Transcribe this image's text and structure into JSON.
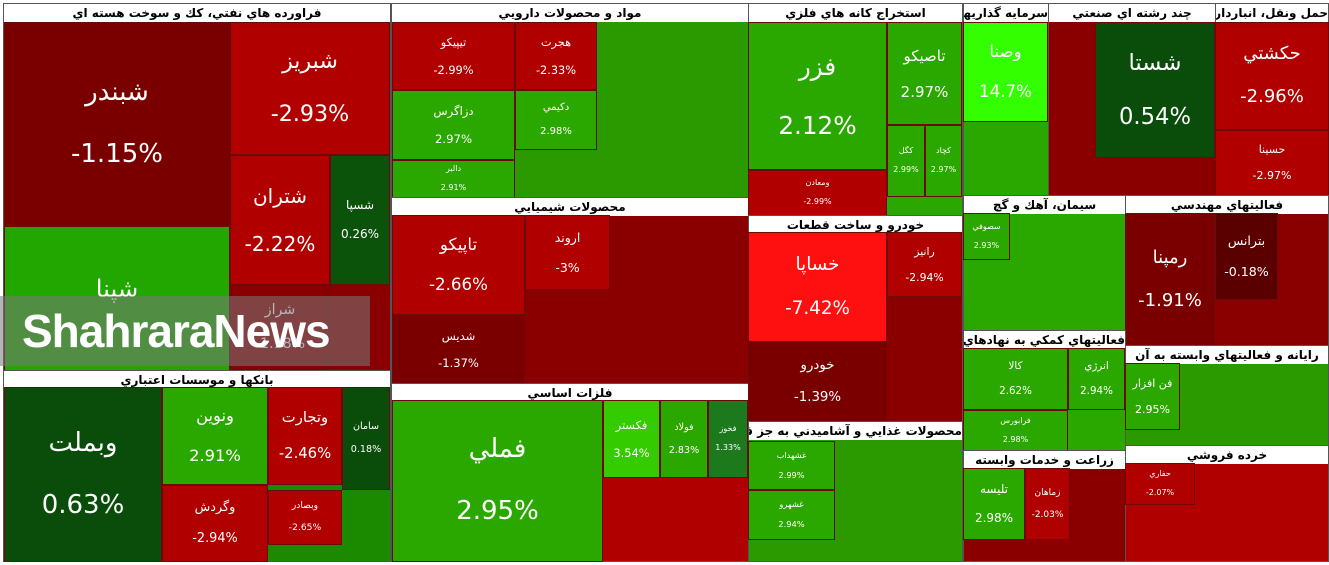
{
  "sectors": [
    {
      "title": "فراورده هاي نفتي، كك و سوخت هسته اي",
      "tiles": [
        {
          "name": "شبندر",
          "change": "-1.15%",
          "color": "#7a0000"
        },
        {
          "name": "شپنا",
          "change": "",
          "color": "#22a600"
        },
        {
          "name": "شبريز",
          "change": "-2.93%",
          "color": "#b00000"
        },
        {
          "name": "شتران",
          "change": "-2.22%",
          "color": "#b00000"
        },
        {
          "name": "شسپا",
          "change": "0.26%",
          "color": "#0b520b"
        },
        {
          "name": "شراز",
          "change": "-1.18%",
          "color": "#8a0000"
        }
      ]
    },
    {
      "title": "بانكها و موسسات اعتباري",
      "tiles": [
        {
          "name": "وبملت",
          "change": "0.63%",
          "color": "#0a4d0a"
        },
        {
          "name": "ونوين",
          "change": "2.91%",
          "color": "#2aa800"
        },
        {
          "name": "وتجارت",
          "change": "-2.46%",
          "color": "#b00000"
        },
        {
          "name": "سامان",
          "change": "0.18%",
          "color": "#0a4d0a"
        },
        {
          "name": "وگردش",
          "change": "-2.94%",
          "color": "#b00000"
        },
        {
          "name": "وبصادر",
          "change": "-2.65%",
          "color": "#b00000"
        }
      ]
    },
    {
      "title": "مواد و محصولات دارويي",
      "tiles": [
        {
          "name": "تيپيكو",
          "change": "-2.99%",
          "color": "#b00000"
        },
        {
          "name": "هجرت",
          "change": "-2.33%",
          "color": "#b00000"
        },
        {
          "name": "دزاگرس",
          "change": "2.97%",
          "color": "#2aa800"
        },
        {
          "name": "دكيمي",
          "change": "2.98%",
          "color": "#2aa800"
        },
        {
          "name": "دالبر",
          "change": "2.91%",
          "color": "#2aa800"
        }
      ]
    },
    {
      "title": "محصولات شيميايي",
      "tiles": [
        {
          "name": "تاپيكو",
          "change": "-2.66%",
          "color": "#b00000"
        },
        {
          "name": "شديس",
          "change": "-1.37%",
          "color": "#7a0000"
        },
        {
          "name": "اروند",
          "change": "-3%",
          "color": "#b00000"
        }
      ]
    },
    {
      "title": "فلزات اساسي",
      "tiles": [
        {
          "name": "فملي",
          "change": "2.95%",
          "color": "#2aa800"
        },
        {
          "name": "فكستر",
          "change": "3.54%",
          "color": "#34cc00"
        },
        {
          "name": "فولاد",
          "change": "2.83%",
          "color": "#2aa800"
        },
        {
          "name": "فخوز",
          "change": "1.33%",
          "color": "#1c7a1c"
        }
      ]
    },
    {
      "title": "استخراج كانه هاي فلزي",
      "tiles": [
        {
          "name": "فزر",
          "change": "2.12%",
          "color": "#2aa800"
        },
        {
          "name": "تاصيكو",
          "change": "2.97%",
          "color": "#2aa800"
        },
        {
          "name": "كگل",
          "change": "2.99%",
          "color": "#2aa800"
        },
        {
          "name": "كچاد",
          "change": "2.97%",
          "color": "#2aa800"
        },
        {
          "name": "ومعادن",
          "change": "-2.99%",
          "color": "#b00000"
        }
      ]
    },
    {
      "title": "خودرو و ساخت قطعات",
      "tiles": [
        {
          "name": "خساپا",
          "change": "-7.42%",
          "color": "#ff1010"
        },
        {
          "name": "خودرو",
          "change": "-1.39%",
          "color": "#7a0000"
        },
        {
          "name": "رانيز",
          "change": "-2.94%",
          "color": "#b00000"
        }
      ]
    },
    {
      "title": "محصولات غذايي و آشاميدني به جز قند و شكر",
      "tiles": [
        {
          "name": "غشهداب",
          "change": "2.99%",
          "color": "#2aa800"
        },
        {
          "name": "غشهرو",
          "change": "2.94%",
          "color": "#2aa800"
        }
      ]
    },
    {
      "title": "سرمايه گذاريها",
      "tiles": [
        {
          "name": "وصنا",
          "change": "14.7%",
          "color": "#33ff00"
        }
      ]
    },
    {
      "title": "چند رشته اي صنعتي",
      "tiles": [
        {
          "name": "شستا",
          "change": "0.54%",
          "color": "#0a4d0a"
        }
      ]
    },
    {
      "title": "حمل ونقل، انبارداري و ارتباطات",
      "tiles": [
        {
          "name": "حكشتي",
          "change": "-2.96%",
          "color": "#b00000"
        },
        {
          "name": "حسينا",
          "change": "-2.97%",
          "color": "#b00000"
        }
      ]
    },
    {
      "title": "سيمان، آهك و گچ",
      "tiles": [
        {
          "name": "سصوفي",
          "change": "2.93%",
          "color": "#2aa800"
        }
      ]
    },
    {
      "title": "فعاليتهاي مهندسي",
      "tiles": [
        {
          "name": "رمپنا",
          "change": "-1.91%",
          "color": "#7a0000"
        },
        {
          "name": "بترانس",
          "change": "-0.18%",
          "color": "#5a0000"
        }
      ]
    },
    {
      "title": "فعاليتهاي كمكي به نهادهاي مالي واسط",
      "tiles": [
        {
          "name": "كالا",
          "change": "2.62%",
          "color": "#2aa800"
        },
        {
          "name": "انرژي",
          "change": "2.94%",
          "color": "#2aa800"
        },
        {
          "name": "فرابورس",
          "change": "2.98%",
          "color": "#2aa800"
        }
      ]
    },
    {
      "title": "زراعت و خدمات وابسته",
      "tiles": [
        {
          "name": "تليسه",
          "change": "2.98%",
          "color": "#2aa800"
        },
        {
          "name": "زماهان",
          "change": "-2.03%",
          "color": "#b00000"
        }
      ]
    },
    {
      "title": "رايانه و فعاليتهاي وابسته به آن",
      "tiles": [
        {
          "name": "فن افزار",
          "change": "2.95%",
          "color": "#2aa800"
        }
      ]
    },
    {
      "title": "خرده فروشي",
      "tiles": [
        {
          "name": "حفاري",
          "change": "-2.07%",
          "color": "#b00000"
        }
      ]
    }
  ],
  "watermark": "ShahraraNews"
}
